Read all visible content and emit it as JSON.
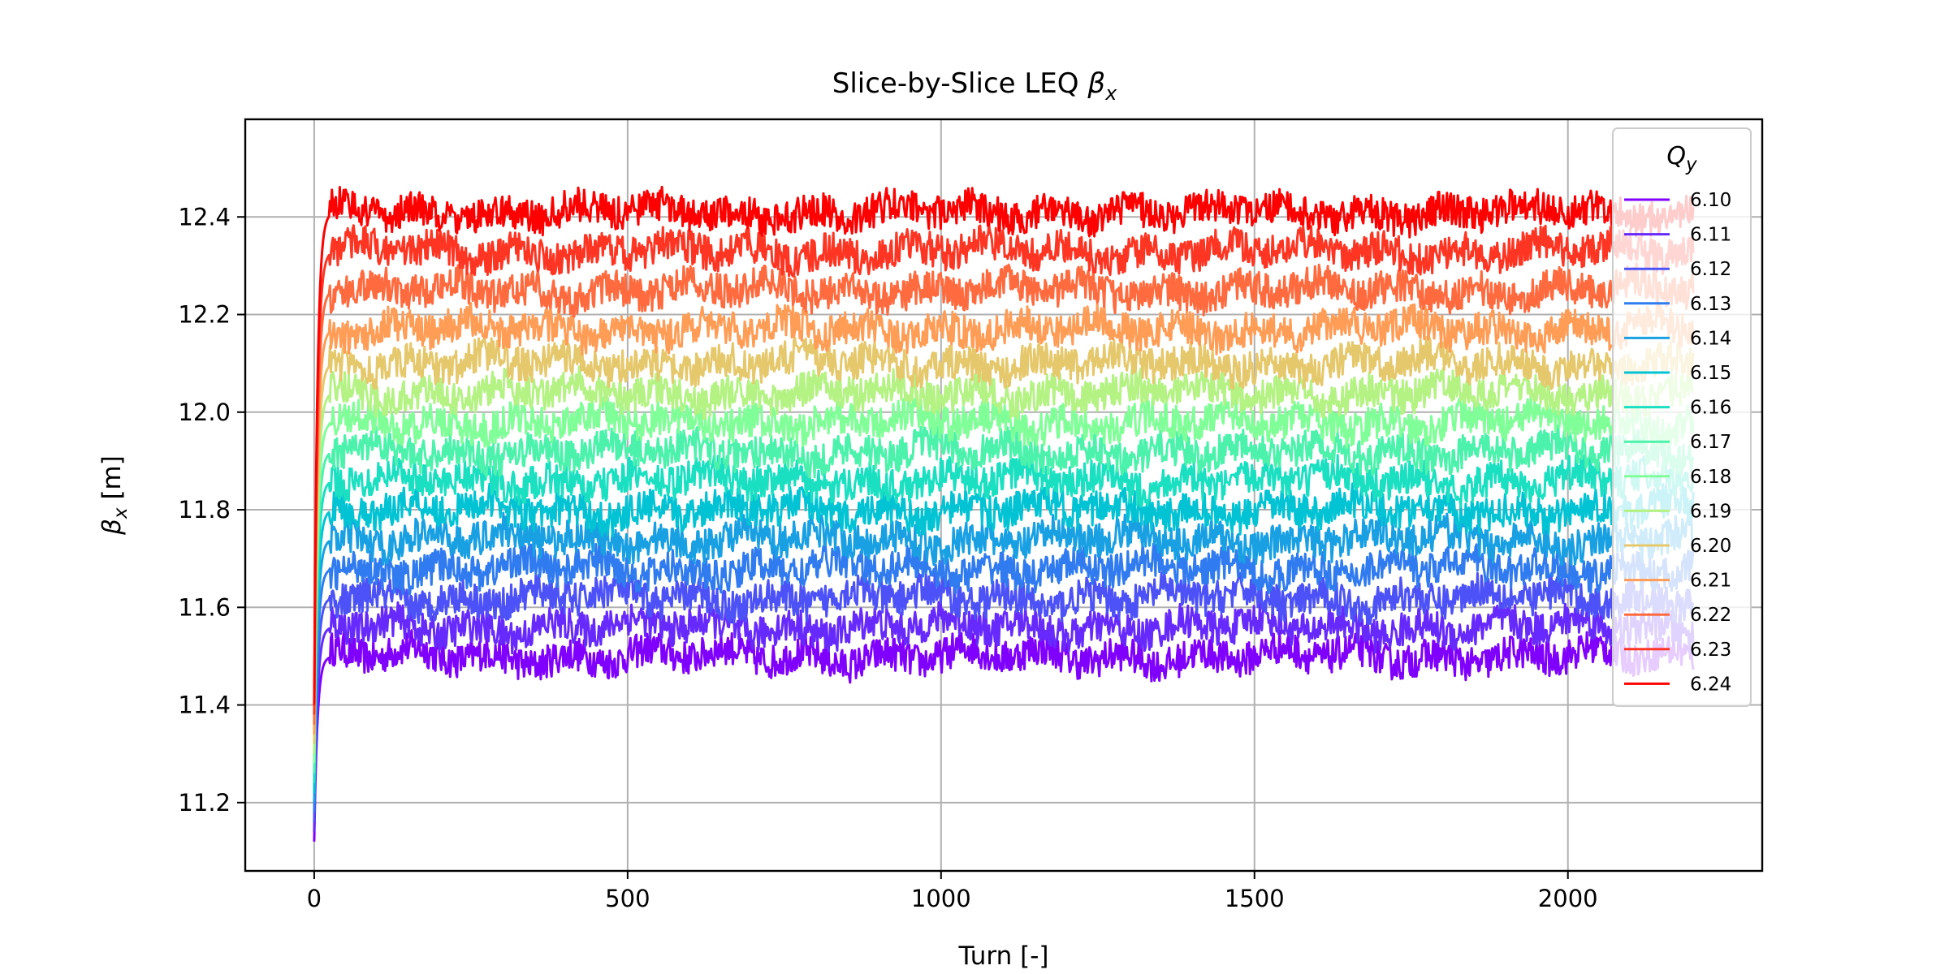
{
  "chart_data": {
    "type": "line",
    "title": "Slice-by-Slice LEQ ",
    "title_symbol": "β",
    "title_symbol_sub": "x",
    "xlabel": "Turn [-]",
    "ylabel_symbol": "β",
    "ylabel_sub": "x",
    "ylabel_unit": " [m]",
    "xlim": [
      -110,
      2310
    ],
    "ylim": [
      11.06,
      12.6
    ],
    "xticks": [
      0,
      500,
      1000,
      1500,
      2000
    ],
    "xtick_labels": [
      "0",
      "500",
      "1000",
      "1500",
      "2000"
    ],
    "yticks": [
      11.2,
      11.4,
      11.6,
      11.8,
      12.0,
      12.2,
      12.4
    ],
    "ytick_labels": [
      "11.2",
      "11.4",
      "11.6",
      "11.8",
      "12.0",
      "12.2",
      "12.4"
    ],
    "grid": true,
    "legend_title_symbol": "Q",
    "legend_title_sub": "y",
    "legend_position": "top-right",
    "x_range": [
      0,
      2200
    ],
    "series": [
      {
        "name": "6.10",
        "level": 11.5,
        "color": "#8000ff"
      },
      {
        "name": "6.11",
        "level": 11.56,
        "color": "#6629fe"
      },
      {
        "name": "6.12",
        "level": 11.62,
        "color": "#4c52f8"
      },
      {
        "name": "6.13",
        "level": 11.68,
        "color": "#2f7bef"
      },
      {
        "name": "6.14",
        "level": 11.74,
        "color": "#18a0e3"
      },
      {
        "name": "6.15",
        "level": 11.8,
        "color": "#02c3d4"
      },
      {
        "name": "6.16",
        "level": 11.86,
        "color": "#1adfc1"
      },
      {
        "name": "6.17",
        "level": 11.92,
        "color": "#4cf2ac"
      },
      {
        "name": "6.18",
        "level": 11.98,
        "color": "#80fe98"
      },
      {
        "name": "6.19",
        "level": 12.04,
        "color": "#b3f283"
      },
      {
        "name": "6.20",
        "level": 12.1,
        "color": "#e6c86c"
      },
      {
        "name": "6.21",
        "level": 12.17,
        "color": "#ff9c55"
      },
      {
        "name": "6.22",
        "level": 12.25,
        "color": "#ff6a3e"
      },
      {
        "name": "6.23",
        "level": 12.33,
        "color": "#ff3523"
      },
      {
        "name": "6.24",
        "level": 12.41,
        "color": "#ff0000"
      }
    ]
  }
}
